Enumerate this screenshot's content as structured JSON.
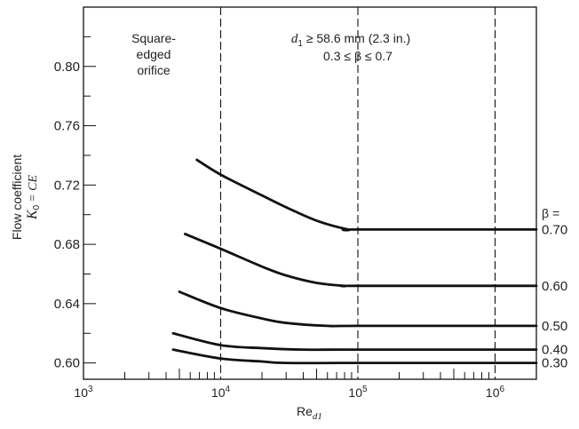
{
  "chart_data": {
    "type": "line",
    "title": "",
    "xlabel": "Re",
    "xlabel_subscript": "d1",
    "ylabel_line1": "Flow coefficient",
    "ylabel_line2_sym": "K",
    "ylabel_line2_sub": "0",
    "ylabel_line2_rest": "= CE",
    "x_scale": "log",
    "xlim": [
      1000,
      2000000
    ],
    "ylim": [
      0.589,
      0.84
    ],
    "x_ticks": [
      {
        "base": "10",
        "exp": "3",
        "value": 1000
      },
      {
        "base": "10",
        "exp": "4",
        "value": 10000
      },
      {
        "base": "10",
        "exp": "5",
        "value": 100000
      },
      {
        "base": "10",
        "exp": "6",
        "value": 1000000
      }
    ],
    "y_ticks": [
      "0.60",
      "0.64",
      "0.68",
      "0.72",
      "0.76",
      "0.80"
    ],
    "y_tick_values": [
      0.6,
      0.64,
      0.68,
      0.72,
      0.76,
      0.8
    ],
    "y_minor_step": 0.02,
    "dashed_verticals": [
      10000,
      100000,
      1000000
    ],
    "annotations": {
      "orifice": [
        "Square-",
        "edged",
        "orifice"
      ],
      "cond_sym": "d",
      "cond_sub": "1",
      "cond_rest": " ≥ 58.6 mm (2.3 in.)",
      "range": "0.3 ≤ β ≤ 0.7",
      "beta_prefix": "β ="
    },
    "series": [
      {
        "name": "0.70",
        "points": [
          [
            6700,
            0.737
          ],
          [
            10000,
            0.727
          ],
          [
            20000,
            0.713
          ],
          [
            30000,
            0.705
          ],
          [
            50000,
            0.696
          ],
          [
            85000,
            0.69
          ],
          [
            100000,
            0.69
          ],
          [
            2000000,
            0.69
          ]
        ]
      },
      {
        "name": "0.60",
        "points": [
          [
            5500,
            0.687
          ],
          [
            10000,
            0.677
          ],
          [
            20000,
            0.665
          ],
          [
            30000,
            0.659
          ],
          [
            50000,
            0.654
          ],
          [
            80000,
            0.652
          ],
          [
            100000,
            0.652
          ],
          [
            2000000,
            0.652
          ]
        ]
      },
      {
        "name": "0.50",
        "points": [
          [
            5000,
            0.648
          ],
          [
            10000,
            0.637
          ],
          [
            20000,
            0.63
          ],
          [
            30000,
            0.627
          ],
          [
            60000,
            0.625
          ],
          [
            100000,
            0.625
          ],
          [
            2000000,
            0.625
          ]
        ]
      },
      {
        "name": "0.40",
        "points": [
          [
            4500,
            0.62
          ],
          [
            10000,
            0.612
          ],
          [
            20000,
            0.61
          ],
          [
            40000,
            0.609
          ],
          [
            100000,
            0.609
          ],
          [
            2000000,
            0.609
          ]
        ]
      },
      {
        "name": "0.30",
        "points": [
          [
            4500,
            0.609
          ],
          [
            10000,
            0.603
          ],
          [
            20000,
            0.601
          ],
          [
            30000,
            0.6
          ],
          [
            100000,
            0.6
          ],
          [
            2000000,
            0.6
          ]
        ]
      }
    ],
    "grid": false,
    "line_color": "#111111"
  }
}
